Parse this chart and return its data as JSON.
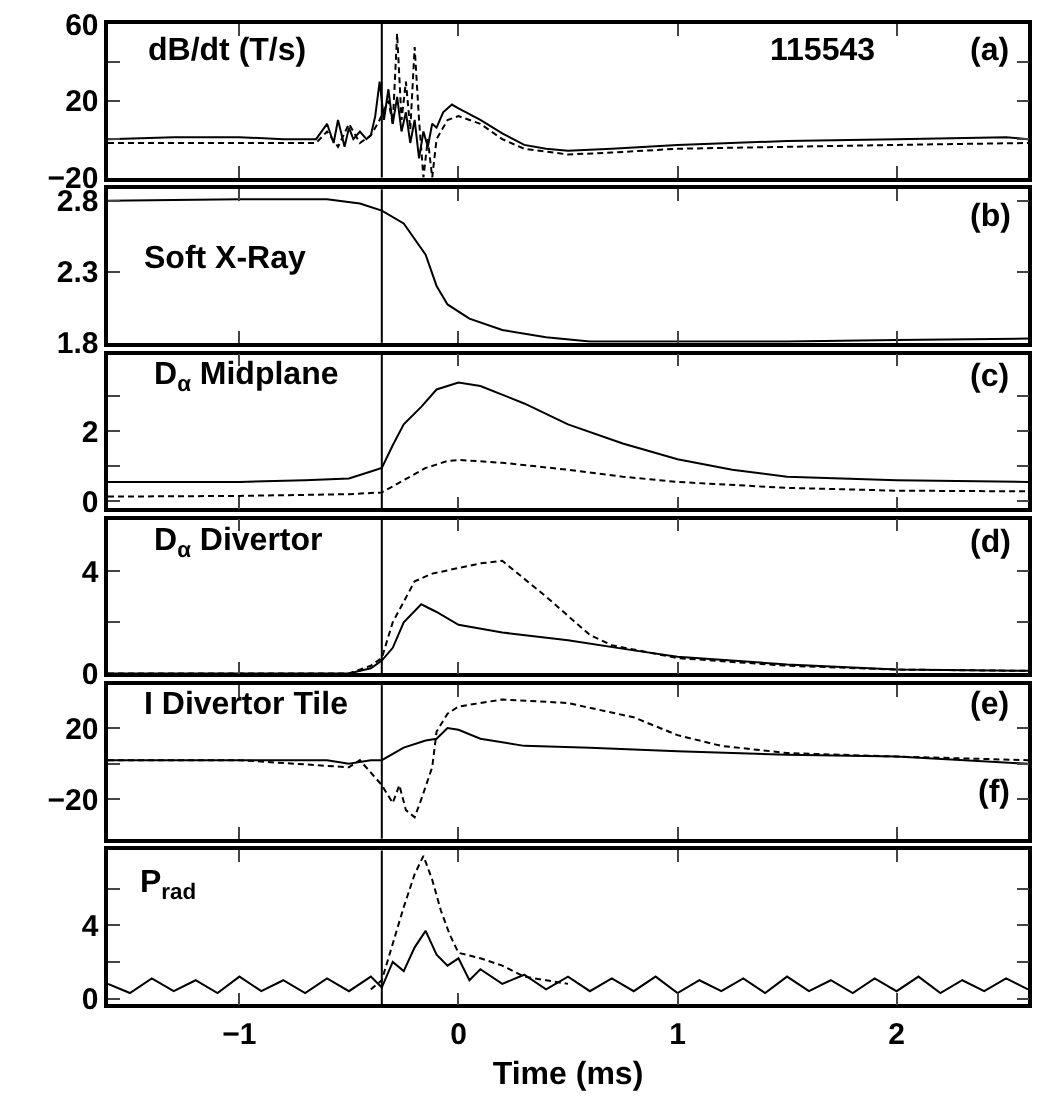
{
  "chart_data": [
    {
      "type": "line",
      "xlim": [
        -1.6,
        2.6
      ],
      "xticks": [
        -1,
        0,
        1,
        2
      ],
      "ylim": [
        -20,
        60
      ],
      "yticks": [
        -20,
        {
          "value": 0,
          "label": null
        },
        20,
        {
          "value": 40,
          "label": null
        },
        60
      ],
      "tick_labels": "y",
      "annotations": [
        "dB/dt (T/s)",
        "115543",
        "(a)"
      ],
      "ref_lines": [
        {
          "axis": "x",
          "value": -0.35,
          "color": "#000000"
        }
      ],
      "series": [
        {
          "color": "#000000",
          "line_style": "solid",
          "x": [
            -1.6,
            -1.3,
            -1.0,
            -0.8,
            -0.65,
            -0.6,
            -0.57,
            -0.55,
            -0.52,
            -0.5,
            -0.48,
            -0.45,
            -0.42,
            -0.4,
            -0.38,
            -0.36,
            -0.34,
            -0.32,
            -0.3,
            -0.28,
            -0.26,
            -0.24,
            -0.22,
            -0.2,
            -0.18,
            -0.16,
            -0.14,
            -0.12,
            -0.1,
            -0.07,
            -0.03,
            0.0,
            0.1,
            0.2,
            0.3,
            0.4,
            0.5,
            0.7,
            1.0,
            1.5,
            2.0,
            2.5,
            2.6
          ],
          "values": [
            0,
            1,
            1,
            0,
            0,
            8,
            -2,
            10,
            -4,
            6,
            0,
            4,
            0,
            2,
            12,
            30,
            10,
            26,
            8,
            22,
            4,
            14,
            -2,
            10,
            -10,
            4,
            -4,
            8,
            6,
            14,
            18,
            16,
            10,
            3,
            -3,
            -5,
            -6,
            -5,
            -3,
            -1,
            0,
            1,
            0
          ]
        },
        {
          "color": "#000000",
          "line_style": "dashed",
          "x": [
            -1.6,
            -1.0,
            -0.65,
            -0.6,
            -0.55,
            -0.5,
            -0.45,
            -0.4,
            -0.36,
            -0.32,
            -0.3,
            -0.28,
            -0.26,
            -0.24,
            -0.22,
            -0.2,
            -0.18,
            -0.16,
            -0.14,
            -0.12,
            -0.1,
            -0.05,
            0.0,
            0.1,
            0.2,
            0.3,
            0.5,
            0.7,
            1.0,
            1.5,
            2.0,
            2.6
          ],
          "values": [
            -2,
            -2,
            -2,
            4,
            -4,
            8,
            -2,
            2,
            10,
            20,
            8,
            55,
            10,
            30,
            5,
            48,
            10,
            -20,
            0,
            -20,
            0,
            10,
            12,
            8,
            0,
            -5,
            -8,
            -7,
            -5,
            -4,
            -3,
            -2
          ]
        }
      ]
    },
    {
      "type": "line",
      "xlim": [
        -1.6,
        2.6
      ],
      "xticks": [
        -1,
        0,
        1,
        2
      ],
      "ylim": [
        1.8,
        2.88
      ],
      "yticks": [
        1.8,
        2.3,
        2.8
      ],
      "tick_labels": "y",
      "annotations": [
        "Soft X-Ray",
        "(b)"
      ],
      "ref_lines": [
        {
          "axis": "x",
          "value": -0.35,
          "color": "#000000"
        }
      ],
      "series": [
        {
          "color": "#000000",
          "line_style": "solid",
          "x": [
            -1.6,
            -1.0,
            -0.6,
            -0.45,
            -0.35,
            -0.25,
            -0.15,
            -0.1,
            -0.05,
            0.05,
            0.2,
            0.4,
            0.6,
            1.0,
            1.5,
            2.0,
            2.6
          ],
          "values": [
            2.8,
            2.81,
            2.81,
            2.78,
            2.73,
            2.64,
            2.42,
            2.2,
            2.07,
            1.97,
            1.89,
            1.84,
            1.81,
            1.81,
            1.81,
            1.82,
            1.83
          ]
        }
      ]
    },
    {
      "type": "line",
      "xlim": [
        -1.6,
        2.6
      ],
      "xticks": [
        -1,
        0,
        1,
        2
      ],
      "ylim": [
        -0.2,
        4.2
      ],
      "yticks": [
        0,
        {
          "value": 1,
          "label": null
        },
        2,
        {
          "value": 3,
          "label": null
        }
      ],
      "tick_labels": "y",
      "annotations": [
        "D$_{α}$ Midplane",
        "(c)"
      ],
      "ref_lines": [
        {
          "axis": "x",
          "value": -0.35,
          "color": "#000000"
        }
      ],
      "series": [
        {
          "color": "#000000",
          "line_style": "solid",
          "x": [
            -1.6,
            -1.0,
            -0.7,
            -0.5,
            -0.4,
            -0.35,
            -0.3,
            -0.25,
            -0.17,
            -0.1,
            0.0,
            0.1,
            0.3,
            0.5,
            0.75,
            1.0,
            1.25,
            1.5,
            2.0,
            2.6
          ],
          "values": [
            0.55,
            0.55,
            0.6,
            0.65,
            0.85,
            0.95,
            1.6,
            2.2,
            2.7,
            3.2,
            3.4,
            3.3,
            2.8,
            2.2,
            1.65,
            1.2,
            0.9,
            0.7,
            0.6,
            0.55
          ]
        },
        {
          "color": "#000000",
          "line_style": "dashed",
          "x": [
            -1.6,
            -1.0,
            -0.5,
            -0.35,
            -0.25,
            -0.15,
            -0.05,
            0.0,
            0.2,
            0.5,
            0.75,
            1.0,
            1.5,
            2.0,
            2.6
          ],
          "values": [
            0.13,
            0.15,
            0.2,
            0.25,
            0.6,
            0.95,
            1.15,
            1.18,
            1.1,
            0.9,
            0.7,
            0.55,
            0.38,
            0.3,
            0.28
          ]
        }
      ]
    },
    {
      "type": "line",
      "xlim": [
        -1.6,
        2.6
      ],
      "xticks": [
        -1,
        0,
        1,
        2
      ],
      "ylim": [
        0,
        6
      ],
      "yticks": [
        0,
        {
          "value": 2,
          "label": null
        },
        4
      ],
      "tick_labels": "y",
      "annotations": [
        "D$_{α}$ Divertor",
        "(d)"
      ],
      "ref_lines": [
        {
          "axis": "x",
          "value": -0.35,
          "color": "#000000"
        }
      ],
      "series": [
        {
          "color": "#000000",
          "line_style": "solid",
          "x": [
            -1.6,
            -1.0,
            -0.5,
            -0.4,
            -0.35,
            -0.3,
            -0.25,
            -0.17,
            -0.1,
            0.0,
            0.2,
            0.5,
            0.8,
            1.0,
            1.5,
            2.0,
            2.6
          ],
          "values": [
            0,
            0,
            0,
            0.2,
            0.5,
            1.0,
            2.0,
            2.7,
            2.4,
            1.9,
            1.6,
            1.3,
            0.9,
            0.65,
            0.35,
            0.15,
            0.1
          ]
        },
        {
          "color": "#000000",
          "line_style": "dashed",
          "x": [
            -1.6,
            -1.0,
            -0.5,
            -0.4,
            -0.35,
            -0.3,
            -0.2,
            -0.12,
            0.1,
            0.2,
            0.4,
            0.6,
            0.7,
            1.0,
            1.5,
            2.0,
            2.6
          ],
          "values": [
            0,
            0,
            0,
            0.3,
            0.6,
            2.0,
            3.6,
            3.9,
            4.3,
            4.4,
            3.0,
            1.5,
            1.1,
            0.6,
            0.3,
            0.15,
            0.1
          ]
        }
      ]
    },
    {
      "type": "line",
      "xlim": [
        -1.6,
        2.6
      ],
      "xticks": [
        -1,
        0,
        1,
        2
      ],
      "ylim": [
        -42,
        44
      ],
      "yticks": [
        -20,
        {
          "value": 0,
          "label": null
        },
        20
      ],
      "tick_labels": "y",
      "annotations": [
        "I Divertor Tile",
        "(e)",
        "(f)"
      ],
      "ref_lines": [
        {
          "axis": "x",
          "value": -0.35,
          "color": "#000000"
        }
      ],
      "series": [
        {
          "color": "#000000",
          "line_style": "solid",
          "x": [
            -1.6,
            -1.0,
            -0.6,
            -0.5,
            -0.4,
            -0.35,
            -0.25,
            -0.15,
            -0.1,
            -0.05,
            0.0,
            0.1,
            0.3,
            0.6,
            1.0,
            1.5,
            2.0,
            2.6
          ],
          "values": [
            2,
            2,
            2,
            0,
            2,
            2,
            9,
            13,
            14,
            20,
            19,
            14,
            10,
            9,
            7,
            5,
            4,
            0
          ]
        },
        {
          "color": "#000000",
          "line_style": "dashed",
          "x": [
            -1.6,
            -1.0,
            -0.5,
            -0.45,
            -0.4,
            -0.35,
            -0.3,
            -0.27,
            -0.24,
            -0.2,
            -0.17,
            -0.12,
            -0.1,
            -0.05,
            0.0,
            0.2,
            0.5,
            0.8,
            1.0,
            1.2,
            1.5,
            2.0,
            2.6
          ],
          "values": [
            2,
            2,
            -2,
            2,
            -5,
            -12,
            -22,
            -12,
            -26,
            -30,
            -20,
            -2,
            18,
            28,
            32,
            36,
            34,
            26,
            16,
            10,
            6,
            4,
            2
          ]
        }
      ]
    },
    {
      "type": "line",
      "xlim": [
        -1.6,
        2.6
      ],
      "xticks": [
        -1,
        0,
        1,
        2
      ],
      "ylim": [
        -0.3,
        8.1
      ],
      "yticks": [
        0,
        {
          "value": 2,
          "label": null
        },
        4,
        {
          "value": 6,
          "label": null
        }
      ],
      "xlabel": "Time (ms)",
      "annotations": [
        "P$_{rad}$"
      ],
      "ref_lines": [
        {
          "axis": "x",
          "value": -0.35,
          "color": "#000000"
        }
      ],
      "series": [
        {
          "color": "#000000",
          "line_style": "solid",
          "x": [
            -1.6,
            -1.5,
            -1.4,
            -1.3,
            -1.2,
            -1.1,
            -1.0,
            -0.9,
            -0.8,
            -0.7,
            -0.6,
            -0.5,
            -0.4,
            -0.35,
            -0.3,
            -0.25,
            -0.2,
            -0.15,
            -0.1,
            -0.05,
            0.0,
            0.05,
            0.1,
            0.2,
            0.3,
            0.4,
            0.5,
            0.6,
            0.7,
            0.8,
            0.9,
            1.0,
            1.1,
            1.2,
            1.3,
            1.4,
            1.5,
            1.6,
            1.7,
            1.8,
            1.9,
            2.0,
            2.1,
            2.2,
            2.3,
            2.4,
            2.5,
            2.6
          ],
          "values": [
            0.8,
            0.3,
            1.1,
            0.4,
            1.0,
            0.3,
            1.2,
            0.4,
            1.0,
            0.3,
            1.1,
            0.4,
            1.2,
            0.6,
            2.0,
            1.5,
            2.8,
            3.7,
            2.4,
            1.8,
            2.2,
            1.0,
            1.6,
            0.8,
            1.3,
            0.5,
            1.2,
            0.4,
            1.1,
            0.4,
            1.2,
            0.3,
            1.0,
            0.4,
            1.1,
            0.3,
            1.2,
            0.4,
            1.0,
            0.3,
            1.1,
            0.4,
            1.2,
            0.3,
            1.0,
            0.4,
            1.1,
            0.5
          ]
        },
        {
          "color": "#000000",
          "line_style": "dashed",
          "x": [
            -0.4,
            -0.35,
            -0.3,
            -0.25,
            -0.2,
            -0.16,
            -0.12,
            -0.08,
            -0.04,
            0.0,
            0.1,
            0.2,
            0.3,
            0.4,
            0.5
          ],
          "values": [
            0.5,
            1.0,
            3.0,
            5.0,
            6.8,
            7.8,
            6.5,
            4.8,
            3.5,
            2.5,
            2.2,
            1.8,
            1.2,
            1.0,
            0.8
          ]
        }
      ]
    }
  ]
}
